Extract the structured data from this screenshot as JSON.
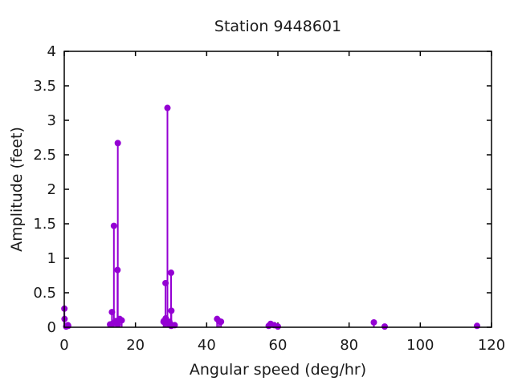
{
  "chart_data": {
    "type": "stem",
    "title": "Station 9448601",
    "xlabel": "Angular speed (deg/hr)",
    "ylabel": "Amplitude (feet)",
    "xlim": [
      0,
      120
    ],
    "ylim": [
      0,
      4
    ],
    "xticks": [
      0,
      20,
      40,
      60,
      80,
      100,
      120
    ],
    "yticks": [
      0,
      0.5,
      1,
      1.5,
      2,
      2.5,
      3,
      3.5,
      4
    ],
    "grid": false,
    "legend": "none",
    "box": true,
    "tick_style": "inward-mirrored",
    "marker_color": "#9400D3",
    "axis_color": "#000000",
    "text_color": "#1a1a1a",
    "background": "#ffffff",
    "points": [
      [
        0.041,
        0.27
      ],
      [
        0.082,
        0.12
      ],
      [
        0.544,
        0.01
      ],
      [
        1.016,
        0.03
      ],
      [
        1.098,
        0.02
      ],
      [
        12.854,
        0.04
      ],
      [
        13.399,
        0.22
      ],
      [
        13.472,
        0.05
      ],
      [
        13.943,
        1.47
      ],
      [
        14.497,
        0.09
      ],
      [
        14.959,
        0.83
      ],
      [
        15.0,
        0.04
      ],
      [
        15.041,
        2.67
      ],
      [
        15.585,
        0.12
      ],
      [
        16.139,
        0.1
      ],
      [
        27.895,
        0.08
      ],
      [
        27.968,
        0.09
      ],
      [
        28.44,
        0.64
      ],
      [
        28.513,
        0.13
      ],
      [
        28.984,
        3.18
      ],
      [
        29.456,
        0.05
      ],
      [
        29.528,
        0.08
      ],
      [
        29.959,
        0.04
      ],
      [
        30.0,
        0.79
      ],
      [
        30.041,
        0.02
      ],
      [
        30.082,
        0.24
      ],
      [
        31.016,
        0.03
      ],
      [
        42.927,
        0.12
      ],
      [
        43.476,
        0.09
      ],
      [
        44.025,
        0.08
      ],
      [
        57.423,
        0.02
      ],
      [
        57.968,
        0.05
      ],
      [
        58.984,
        0.03
      ],
      [
        60.0,
        0.01
      ],
      [
        86.952,
        0.07
      ],
      [
        90.0,
        0.01
      ],
      [
        115.936,
        0.02
      ]
    ]
  }
}
